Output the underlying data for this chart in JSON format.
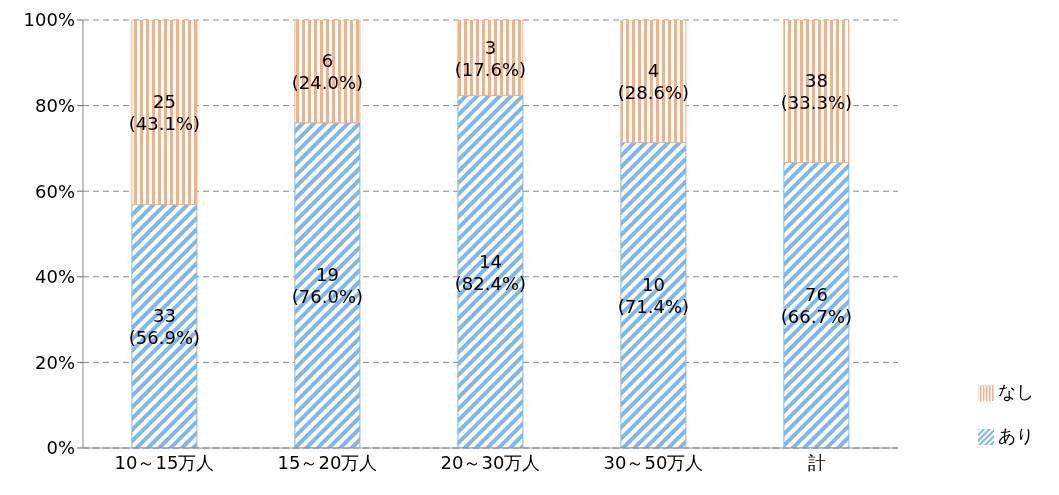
{
  "chart_data": {
    "type": "bar",
    "stacked": true,
    "categories": [
      "10～15万人",
      "15～20万人",
      "20～30万人",
      "30～50万人",
      "計"
    ],
    "series": [
      {
        "name": "あり",
        "color": "#7fb8e6",
        "values": [
          56.9,
          76.0,
          82.4,
          71.4,
          66.7
        ],
        "value_labels": [
          "33 (56.9%)",
          "19 (76.0%)",
          "14 (82.4%)",
          "10 (71.4%)",
          "76 (66.7%)"
        ]
      },
      {
        "name": "なし",
        "color": "#f4b183",
        "values": [
          43.1,
          24.0,
          17.6,
          28.6,
          33.3
        ],
        "value_labels": [
          "25 (43.1%)",
          "6 (24.0%)",
          "3 (17.6%)",
          "4 (28.6%)",
          "38 (33.3%)"
        ]
      }
    ],
    "ylim": [
      0,
      100
    ],
    "yticks": [
      {
        "value": 0,
        "label": "0%"
      },
      {
        "value": 20,
        "label": "20%"
      },
      {
        "value": 40,
        "label": "40%"
      },
      {
        "value": 60,
        "label": "60%"
      },
      {
        "value": 80,
        "label": "80%"
      },
      {
        "value": 100,
        "label": "100%"
      }
    ],
    "grid": "y",
    "legend": "right"
  }
}
